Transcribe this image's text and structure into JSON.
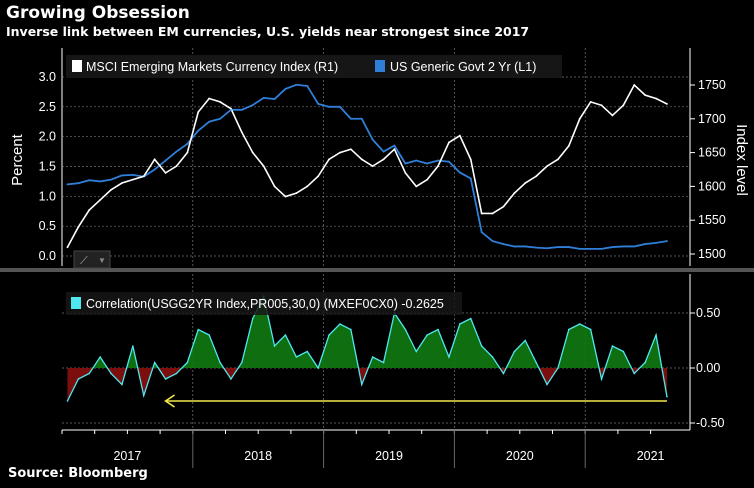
{
  "title": "Growing Obsession",
  "subtitle": "Inverse link between EM currencies, U.S. yields near strongest since 2017",
  "source": "Source: Bloomberg",
  "colors": {
    "background": "#000000",
    "msci": "#ffffff",
    "yield": "#2f7fd8",
    "correlation_line": "#4fe8f0",
    "positive_fill": "#0f7a12",
    "negative_fill": "#8a0f0f",
    "arrow": "#f2e84a",
    "grid": "#777777"
  },
  "chart_data": [
    {
      "type": "line",
      "ylabel_left": "Percent",
      "ylabel_right": "Index level",
      "ylim_left": [
        0,
        3.0
      ],
      "yticks_left": [
        "0.0",
        "0.5",
        "1.0",
        "1.5",
        "2.0",
        "2.5",
        "3.0"
      ],
      "ylim_right": [
        1500,
        1750
      ],
      "yticks_right": [
        "1500",
        "1550",
        "1600",
        "1650",
        "1700",
        "1750"
      ],
      "grid": true,
      "legend_placement": "top-left",
      "x": [
        "2017-01",
        "2017-02",
        "2017-03",
        "2017-04",
        "2017-05",
        "2017-06",
        "2017-07",
        "2017-08",
        "2017-09",
        "2017-10",
        "2017-11",
        "2017-12",
        "2018-01",
        "2018-02",
        "2018-03",
        "2018-04",
        "2018-05",
        "2018-06",
        "2018-07",
        "2018-08",
        "2018-09",
        "2018-10",
        "2018-11",
        "2018-12",
        "2019-01",
        "2019-02",
        "2019-03",
        "2019-04",
        "2019-05",
        "2019-06",
        "2019-07",
        "2019-08",
        "2019-09",
        "2019-10",
        "2019-11",
        "2019-12",
        "2020-01",
        "2020-02",
        "2020-03",
        "2020-04",
        "2020-05",
        "2020-06",
        "2020-07",
        "2020-08",
        "2020-09",
        "2020-10",
        "2020-11",
        "2020-12",
        "2021-01",
        "2021-02",
        "2021-03",
        "2021-04",
        "2021-05",
        "2021-06",
        "2021-07",
        "2021-08"
      ],
      "series": [
        {
          "name": "MSCI Emerging Markets Currency Index  (R1)",
          "axis": "right",
          "values": [
            1510,
            1540,
            1565,
            1580,
            1595,
            1605,
            1610,
            1615,
            1640,
            1620,
            1630,
            1650,
            1710,
            1730,
            1725,
            1715,
            1680,
            1650,
            1630,
            1600,
            1585,
            1590,
            1600,
            1615,
            1640,
            1650,
            1655,
            1640,
            1630,
            1640,
            1655,
            1620,
            1600,
            1610,
            1630,
            1665,
            1675,
            1640,
            1560,
            1560,
            1570,
            1590,
            1605,
            1615,
            1630,
            1640,
            1660,
            1700,
            1725,
            1720,
            1705,
            1720,
            1750,
            1735,
            1730,
            1722
          ]
        },
        {
          "name": "US Generic Govt 2 Yr  (L1)",
          "axis": "left",
          "values": [
            1.2,
            1.22,
            1.27,
            1.25,
            1.28,
            1.35,
            1.36,
            1.33,
            1.45,
            1.6,
            1.75,
            1.88,
            2.1,
            2.25,
            2.3,
            2.45,
            2.45,
            2.53,
            2.65,
            2.63,
            2.8,
            2.87,
            2.85,
            2.55,
            2.5,
            2.5,
            2.3,
            2.3,
            1.95,
            1.75,
            1.85,
            1.55,
            1.6,
            1.55,
            1.6,
            1.58,
            1.4,
            1.3,
            0.4,
            0.25,
            0.2,
            0.16,
            0.16,
            0.14,
            0.13,
            0.15,
            0.15,
            0.12,
            0.12,
            0.12,
            0.15,
            0.16,
            0.16,
            0.2,
            0.22,
            0.25
          ]
        }
      ]
    },
    {
      "type": "area",
      "ylim": [
        -0.5,
        0.5
      ],
      "yticks": [
        "-0.50",
        "0.00",
        "0.50"
      ],
      "xtick_labels": [
        "2017",
        "2018",
        "2019",
        "2020",
        "2021"
      ],
      "grid": true,
      "legend_placement": "top-left",
      "series": [
        {
          "name": "Correlation(USGG2YR Index,PR005,30,0) (MXEF0CX0)  -0.2625",
          "values": [
            -0.3,
            -0.1,
            -0.05,
            0.1,
            -0.05,
            -0.15,
            0.2,
            -0.25,
            0.05,
            -0.1,
            -0.05,
            0.05,
            0.35,
            0.3,
            0.05,
            -0.1,
            0.05,
            0.45,
            0.65,
            0.2,
            0.3,
            0.1,
            0.15,
            0.0,
            0.3,
            0.4,
            0.35,
            -0.15,
            0.1,
            0.05,
            0.5,
            0.35,
            0.15,
            0.3,
            0.35,
            0.1,
            0.4,
            0.45,
            0.2,
            0.1,
            -0.05,
            0.15,
            0.25,
            0.05,
            -0.15,
            0.0,
            0.35,
            0.4,
            0.35,
            -0.1,
            0.2,
            0.15,
            -0.05,
            0.05,
            0.3,
            -0.26
          ]
        }
      ],
      "annotation": {
        "type": "arrow",
        "from_x": "2021-08",
        "to_x": "2017-10",
        "y": -0.3
      }
    }
  ]
}
